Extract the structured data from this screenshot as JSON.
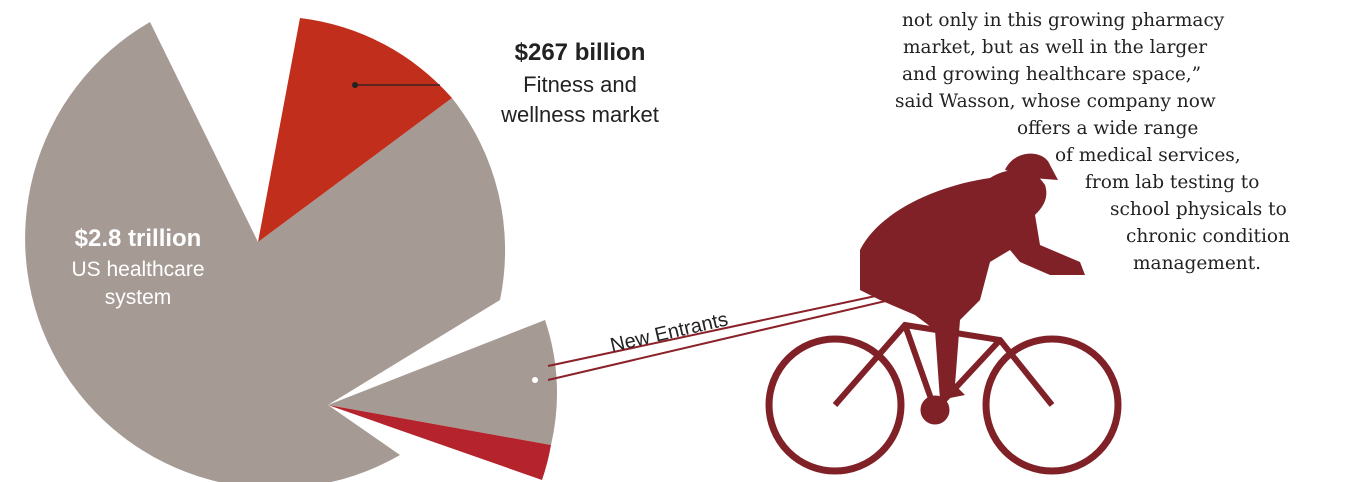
{
  "fitness": {
    "amount": "$267 billion",
    "lines": [
      "Fitness and",
      "wellness market"
    ]
  },
  "healthcare": {
    "amount": "$2.8 trillion",
    "lines": [
      "US healthcare",
      "system"
    ]
  },
  "annotation": "New Entrants",
  "quote_lines": [
    "not only in this growing pharmacy",
    "market, but as well in the larger",
    "and growing healthcare space,”",
    "said Wasson, whose company now",
    "offers a wide range",
    "of medical services,",
    "from lab testing to",
    "school physicals to",
    "chronic condition",
    "management."
  ]
}
